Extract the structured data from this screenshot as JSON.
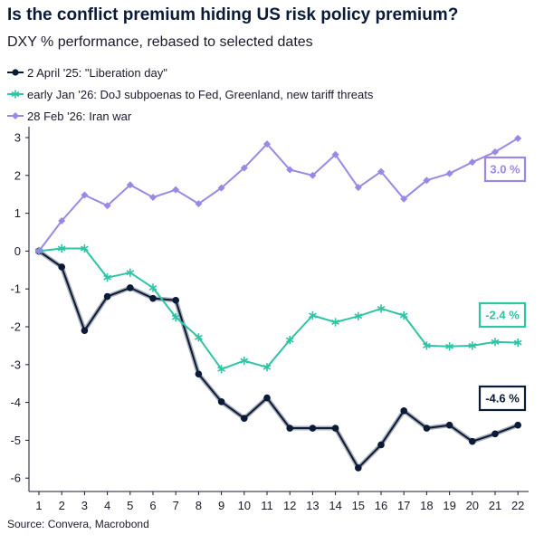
{
  "header": {
    "title": "Is the conflict premium hiding US risk policy premium?",
    "subtitle": "DXY % performance, rebased to selected dates"
  },
  "source": "Source: Convera, Macrobond",
  "chart_data": {
    "type": "line",
    "x": [
      1,
      2,
      3,
      4,
      5,
      6,
      7,
      8,
      9,
      10,
      11,
      12,
      13,
      14,
      15,
      16,
      17,
      18,
      19,
      20,
      21,
      22
    ],
    "xlabel": "",
    "ylabel": "",
    "ylim": [
      -6.4,
      3.3
    ],
    "yticks": [
      3,
      2,
      1,
      0,
      -1,
      -2,
      -3,
      -4,
      -5,
      -6
    ],
    "grid": false,
    "legend_position": "top-left",
    "series": [
      {
        "name": "2 April '25: \"Liberation day\"",
        "color": "#0b1a36",
        "marker": "circle",
        "values": [
          0,
          -0.42,
          -2.1,
          -1.2,
          -0.97,
          -1.25,
          -1.3,
          -3.25,
          -3.98,
          -4.42,
          -3.88,
          -4.68,
          -4.68,
          -4.68,
          -5.73,
          -5.12,
          -4.22,
          -4.68,
          -4.6,
          -5.03,
          -4.83,
          -4.6
        ],
        "end_label": "-4.6 %"
      },
      {
        "name": "early Jan '26: DoJ subpoenas to Fed, Greenland, new tariff threats",
        "color": "#2ec4a5",
        "marker": "star",
        "values": [
          0,
          0.07,
          0.07,
          -0.7,
          -0.57,
          -0.97,
          -1.75,
          -2.28,
          -3.12,
          -2.9,
          -3.07,
          -2.35,
          -1.7,
          -1.88,
          -1.72,
          -1.52,
          -1.7,
          -2.5,
          -2.52,
          -2.5,
          -2.4,
          -2.42
        ],
        "end_label": "-2.4 %"
      },
      {
        "name": "28 Feb '26: Iran war",
        "color": "#9b87e6",
        "marker": "diamond",
        "values": [
          0,
          0.8,
          1.48,
          1.2,
          1.75,
          1.42,
          1.62,
          1.25,
          1.67,
          2.2,
          2.83,
          2.15,
          2.0,
          2.55,
          1.68,
          2.1,
          1.38,
          1.87,
          2.05,
          2.35,
          2.62,
          2.98
        ],
        "end_label": "3.0 %"
      }
    ]
  }
}
